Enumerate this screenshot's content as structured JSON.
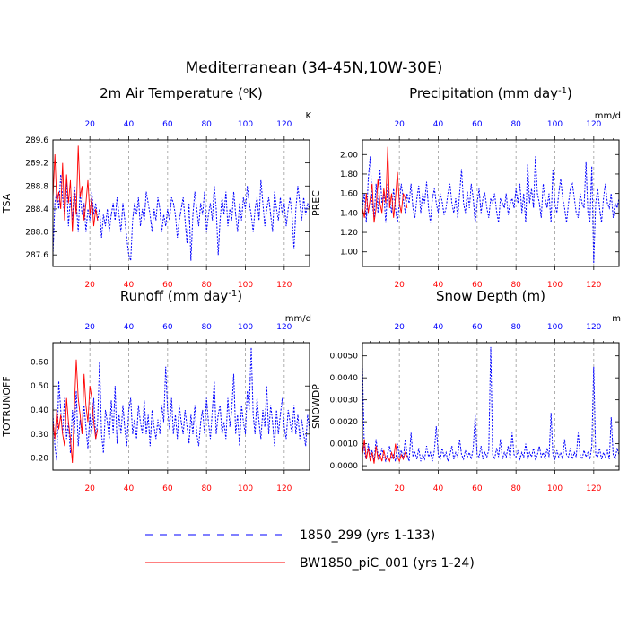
{
  "title": "Mediterranean (34-45N,10W-30E)",
  "legend": {
    "entries": [
      {
        "label": "1850_299 (yrs 1-133)",
        "color": "#0000ff",
        "style": "dashed"
      },
      {
        "label": "BW1850_piC_001 (yrs 1-24)",
        "color": "#ff0000",
        "style": "solid"
      }
    ]
  },
  "chart_data": [
    {
      "type": "line",
      "title": "2m Air Temperature (",
      "title_sup": "o",
      "title_tail": "K)",
      "ylabel": "TSA",
      "units": "K",
      "xlim": [
        1,
        133
      ],
      "ylim": [
        287.4,
        289.6
      ],
      "yticks": [
        287.6,
        288.0,
        288.4,
        288.8,
        289.2,
        289.6
      ],
      "yticklabels": [
        "287.6",
        "288.0",
        "288.4",
        "288.8",
        "289.2",
        "289.6"
      ],
      "x_top_ticks": [
        "20",
        "40",
        "60",
        "80",
        "100",
        "120"
      ],
      "x_bottom_ticks": [
        "20"
      ],
      "series": [
        {
          "name": "1850_299 (yrs 1-133)",
          "color": "#0000ff",
          "dash": true,
          "values": [
            287.6,
            288.5,
            288.7,
            288.4,
            289.0,
            288.6,
            288.3,
            288.9,
            288.1,
            288.6,
            288.2,
            288.8,
            288.5,
            288.0,
            288.7,
            288.3,
            288.5,
            288.0,
            288.4,
            288.2,
            288.7,
            288.3,
            288.5,
            288.2,
            288.4,
            287.9,
            288.3,
            288.1,
            288.4,
            288.0,
            288.3,
            288.5,
            288.2,
            288.6,
            288.3,
            288.0,
            288.5,
            288.2,
            287.9,
            287.6,
            287.5,
            288.2,
            288.5,
            288.3,
            288.6,
            288.1,
            288.4,
            288.2,
            288.7,
            288.5,
            288.3,
            288.0,
            288.4,
            288.2,
            288.6,
            288.4,
            288.0,
            288.3,
            288.1,
            288.4,
            288.2,
            288.6,
            288.5,
            288.3,
            287.9,
            288.2,
            288.4,
            288.6,
            288.2,
            287.8,
            288.5,
            287.5,
            288.3,
            288.7,
            288.4,
            288.1,
            288.5,
            288.3,
            288.7,
            288.0,
            288.3,
            288.5,
            288.2,
            288.8,
            288.4,
            287.6,
            288.2,
            288.6,
            288.3,
            288.7,
            288.1,
            288.4,
            288.2,
            288.7,
            288.3,
            288.0,
            288.5,
            288.2,
            288.6,
            288.4,
            288.8,
            288.5,
            288.3,
            288.0,
            288.4,
            288.6,
            288.2,
            288.9,
            288.5,
            288.1,
            288.4,
            288.6,
            288.3,
            288.0,
            288.7,
            288.4,
            288.2,
            288.6,
            288.3,
            288.5,
            288.1,
            288.4,
            288.6,
            288.3,
            287.7,
            288.4,
            288.8,
            288.5,
            288.2,
            288.6,
            288.3,
            288.5,
            288.4
          ]
        },
        {
          "name": "BW1850_piC_001 (yrs 1-24)",
          "color": "#ff0000",
          "dash": false,
          "values": [
            288.6,
            289.35,
            288.5,
            288.7,
            288.4,
            289.2,
            288.2,
            289.0,
            288.5,
            288.9,
            288.0,
            288.7,
            288.3,
            289.5,
            288.6,
            288.8,
            288.2,
            288.5,
            288.9,
            288.3,
            288.6,
            288.1,
            288.4,
            288.2
          ]
        }
      ]
    },
    {
      "type": "line",
      "title": "Precipitation (mm day",
      "title_sup": "-1",
      "title_tail": ")",
      "ylabel": "PREC",
      "units": "mm/d",
      "xlim": [
        1,
        133
      ],
      "ylim": [
        0.85,
        2.15
      ],
      "yticks": [
        1.0,
        1.2,
        1.4,
        1.6,
        1.8,
        2.0
      ],
      "yticklabels": [
        "1.00",
        "1.20",
        "1.40",
        "1.60",
        "1.80",
        "2.00"
      ],
      "x_top_ticks": [
        "20",
        "40",
        "60",
        "80",
        "100",
        "120"
      ],
      "x_bottom_ticks": [
        "20"
      ],
      "series": [
        {
          "name": "1850_299 (yrs 1-133)",
          "color": "#0000ff",
          "dash": true,
          "values": [
            1.45,
            1.6,
            1.3,
            1.75,
            1.98,
            1.5,
            1.35,
            1.7,
            1.4,
            1.85,
            1.5,
            1.6,
            1.3,
            1.7,
            1.55,
            1.4,
            1.65,
            1.45,
            1.3,
            1.5,
            1.7,
            1.55,
            1.4,
            1.6,
            1.5,
            1.7,
            1.45,
            1.35,
            1.55,
            1.68,
            1.4,
            1.6,
            1.5,
            1.72,
            1.45,
            1.3,
            1.55,
            1.65,
            1.5,
            1.4,
            1.6,
            1.52,
            1.38,
            1.45,
            1.6,
            1.7,
            1.5,
            1.4,
            1.55,
            1.35,
            1.6,
            1.85,
            1.5,
            1.4,
            1.62,
            1.45,
            1.7,
            1.55,
            1.3,
            1.5,
            1.65,
            1.4,
            1.55,
            1.6,
            1.45,
            1.35,
            1.55,
            1.5,
            1.6,
            1.42,
            1.3,
            1.55,
            1.5,
            1.45,
            1.6,
            1.38,
            1.5,
            1.55,
            1.45,
            1.65,
            1.5,
            1.7,
            1.4,
            1.6,
            1.3,
            1.9,
            1.5,
            1.65,
            1.45,
            1.98,
            1.6,
            1.5,
            1.35,
            1.7,
            1.55,
            1.45,
            1.6,
            1.3,
            1.85,
            1.5,
            1.4,
            1.6,
            1.75,
            1.55,
            1.45,
            1.3,
            1.5,
            1.65,
            1.7,
            1.55,
            1.4,
            1.35,
            1.6,
            1.5,
            1.45,
            1.92,
            1.4,
            1.3,
            1.88,
            0.88,
            1.5,
            1.65,
            1.45,
            1.3,
            1.55,
            1.7,
            1.5,
            1.45,
            1.6,
            1.35,
            1.5,
            1.45,
            1.55
          ]
        },
        {
          "name": "BW1850_piC_001 (yrs 1-24)",
          "color": "#ff0000",
          "dash": false,
          "values": [
            1.45,
            1.35,
            1.6,
            1.4,
            1.55,
            1.7,
            1.3,
            1.45,
            1.75,
            1.5,
            1.4,
            1.65,
            1.5,
            2.08,
            1.45,
            1.6,
            1.35,
            1.55,
            1.82,
            1.5,
            1.4,
            1.6,
            1.55,
            1.45
          ]
        }
      ]
    },
    {
      "type": "line",
      "title": "Runoff (mm day",
      "title_sup": "-1",
      "title_tail": ")",
      "ylabel": "TOTRUNOFF",
      "units": "mm/d",
      "xlim": [
        1,
        133
      ],
      "ylim": [
        0.15,
        0.68
      ],
      "yticks": [
        0.2,
        0.3,
        0.4,
        0.5,
        0.6
      ],
      "yticklabels": [
        "0.20",
        "0.30",
        "0.40",
        "0.50",
        "0.60"
      ],
      "x_top_ticks": [
        "20",
        "40",
        "60",
        "80",
        "100",
        "120"
      ],
      "x_bottom_ticks": [
        "20"
      ],
      "series": [
        {
          "name": "1850_299 (yrs 1-133)",
          "color": "#0000ff",
          "dash": true,
          "values": [
            0.38,
            0.25,
            0.19,
            0.52,
            0.4,
            0.3,
            0.45,
            0.28,
            0.35,
            0.22,
            0.4,
            0.3,
            0.48,
            0.25,
            0.36,
            0.3,
            0.42,
            0.33,
            0.24,
            0.38,
            0.3,
            0.45,
            0.28,
            0.35,
            0.6,
            0.3,
            0.22,
            0.4,
            0.35,
            0.28,
            0.44,
            0.3,
            0.5,
            0.26,
            0.38,
            0.3,
            0.42,
            0.32,
            0.25,
            0.4,
            0.45,
            0.3,
            0.36,
            0.28,
            0.42,
            0.35,
            0.3,
            0.44,
            0.3,
            0.38,
            0.25,
            0.4,
            0.33,
            0.28,
            0.36,
            0.3,
            0.42,
            0.35,
            0.58,
            0.4,
            0.32,
            0.45,
            0.3,
            0.38,
            0.28,
            0.42,
            0.35,
            0.3,
            0.4,
            0.33,
            0.26,
            0.38,
            0.3,
            0.42,
            0.3,
            0.25,
            0.35,
            0.4,
            0.3,
            0.45,
            0.35,
            0.28,
            0.4,
            0.52,
            0.3,
            0.38,
            0.42,
            0.3,
            0.35,
            0.28,
            0.45,
            0.33,
            0.4,
            0.55,
            0.3,
            0.38,
            0.25,
            0.42,
            0.35,
            0.3,
            0.48,
            0.4,
            0.66,
            0.38,
            0.3,
            0.45,
            0.35,
            0.28,
            0.4,
            0.33,
            0.5,
            0.3,
            0.42,
            0.35,
            0.25,
            0.4,
            0.3,
            0.38,
            0.45,
            0.33,
            0.28,
            0.4,
            0.35,
            0.3,
            0.42,
            0.3,
            0.38,
            0.28,
            0.36,
            0.3,
            0.25,
            0.38,
            0.32
          ]
        },
        {
          "name": "BW1850_piC_001 (yrs 1-24)",
          "color": "#ff0000",
          "dash": false,
          "values": [
            0.35,
            0.28,
            0.4,
            0.32,
            0.38,
            0.3,
            0.25,
            0.45,
            0.35,
            0.28,
            0.18,
            0.4,
            0.61,
            0.45,
            0.38,
            0.3,
            0.55,
            0.42,
            0.35,
            0.5,
            0.45,
            0.35,
            0.28,
            0.32
          ]
        }
      ]
    },
    {
      "type": "line",
      "title": "Snow Depth (m)",
      "title_sup": "",
      "title_tail": "",
      "ylabel": "SNOWDP",
      "units": "m",
      "xlim": [
        1,
        133
      ],
      "ylim": [
        -0.0002,
        0.0056
      ],
      "yticks": [
        0.0,
        0.001,
        0.002,
        0.003,
        0.004,
        0.005
      ],
      "yticklabels": [
        "0.0000",
        "0.0010",
        "0.0020",
        "0.0030",
        "0.0040",
        "0.0050"
      ],
      "x_top_ticks": [
        "20",
        "40",
        "60",
        "80",
        "100",
        "120"
      ],
      "x_bottom_ticks": [
        "20"
      ],
      "series": [
        {
          "name": "1850_299 (yrs 1-133)",
          "color": "#0000ff",
          "dash": true,
          "values": [
            0.0046,
            0.0006,
            0.0003,
            0.001,
            0.0004,
            0.0007,
            0.0002,
            0.0012,
            0.0005,
            0.0003,
            0.0008,
            0.0004,
            0.0002,
            0.0006,
            0.0009,
            0.0003,
            0.0005,
            0.0002,
            0.001,
            0.0004,
            0.0007,
            0.0003,
            0.0012,
            0.0005,
            0.0002,
            0.0015,
            0.0004,
            0.0006,
            0.0003,
            0.0008,
            0.0002,
            0.0005,
            0.0003,
            0.0009,
            0.0004,
            0.0006,
            0.0002,
            0.0007,
            0.0018,
            0.0005,
            0.0003,
            0.0008,
            0.0004,
            0.0006,
            0.0002,
            0.0005,
            0.0009,
            0.0003,
            0.0006,
            0.0004,
            0.0012,
            0.0005,
            0.0003,
            0.0007,
            0.0004,
            0.0006,
            0.0003,
            0.0008,
            0.0023,
            0.0005,
            0.0004,
            0.0009,
            0.0003,
            0.0006,
            0.0004,
            0.0007,
            0.0054,
            0.0005,
            0.0003,
            0.0008,
            0.0004,
            0.0012,
            0.0003,
            0.0006,
            0.0004,
            0.0009,
            0.0003,
            0.0015,
            0.0005,
            0.0004,
            0.0007,
            0.0003,
            0.0006,
            0.0004,
            0.001,
            0.0003,
            0.0006,
            0.0004,
            0.0008,
            0.0003,
            0.0005,
            0.0009,
            0.0004,
            0.0006,
            0.0003,
            0.0008,
            0.0004,
            0.0024,
            0.0005,
            0.0003,
            0.0007,
            0.0004,
            0.0006,
            0.0003,
            0.0012,
            0.0005,
            0.0004,
            0.0008,
            0.0003,
            0.0006,
            0.0004,
            0.0015,
            0.0005,
            0.0003,
            0.0007,
            0.0004,
            0.0006,
            0.0003,
            0.0009,
            0.0045,
            0.0005,
            0.0004,
            0.0008,
            0.0003,
            0.0006,
            0.0004,
            0.0007,
            0.0003,
            0.0022,
            0.0005,
            0.0003,
            0.0008,
            0.0005
          ]
        },
        {
          "name": "BW1850_piC_001 (yrs 1-24)",
          "color": "#ff0000",
          "dash": false,
          "values": [
            0.0005,
            0.0012,
            0.0003,
            0.0008,
            0.0002,
            0.0006,
            0.0001,
            0.0009,
            0.0003,
            0.0005,
            0.0002,
            0.0007,
            0.0003,
            0.0004,
            0.0002,
            0.0006,
            0.0003,
            0.001,
            0.0004,
            0.0002,
            0.0005,
            0.0003,
            0.0006,
            0.0004
          ]
        }
      ]
    }
  ]
}
